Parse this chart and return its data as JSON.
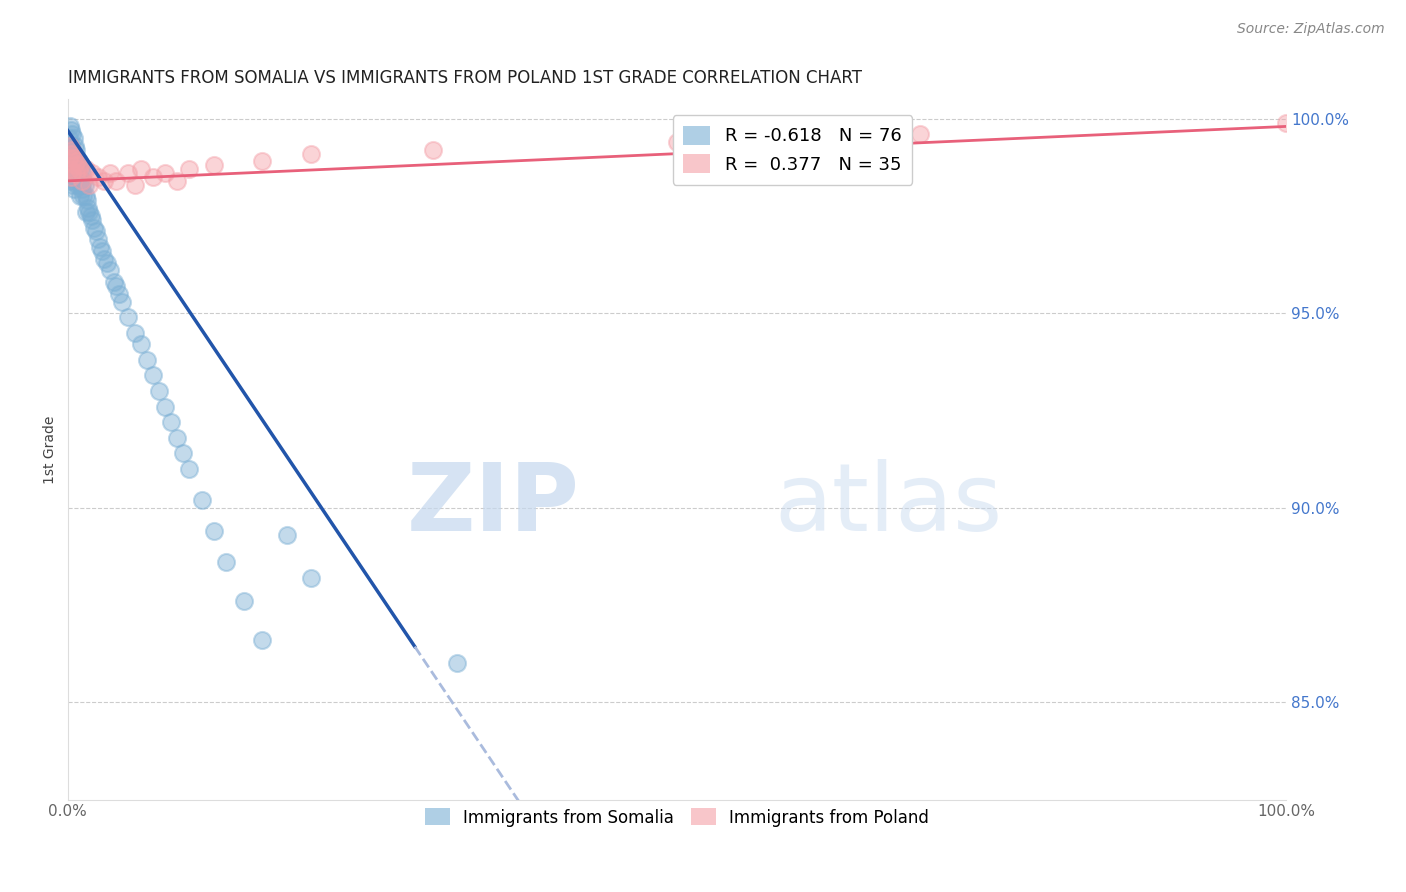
{
  "title": "IMMIGRANTS FROM SOMALIA VS IMMIGRANTS FROM POLAND 1ST GRADE CORRELATION CHART",
  "source": "Source: ZipAtlas.com",
  "ylabel": "1st Grade",
  "legend_somalia": "Immigrants from Somalia",
  "legend_poland": "Immigrants from Poland",
  "somalia_R": -0.618,
  "somalia_N": 76,
  "poland_R": 0.377,
  "poland_N": 35,
  "somalia_color": "#7BAFD4",
  "poland_color": "#F4A0A8",
  "trend_somalia_color": "#2255AA",
  "trend_poland_color": "#E8607A",
  "xlim": [
    0.0,
    1.0
  ],
  "ylim": [
    0.825,
    1.005
  ],
  "watermark_zip": "ZIP",
  "watermark_atlas": "atlas",
  "somalia_x": [
    0.001,
    0.001,
    0.002,
    0.002,
    0.002,
    0.003,
    0.003,
    0.003,
    0.003,
    0.004,
    0.004,
    0.004,
    0.004,
    0.005,
    0.005,
    0.005,
    0.005,
    0.006,
    0.006,
    0.006,
    0.007,
    0.007,
    0.007,
    0.008,
    0.008,
    0.008,
    0.009,
    0.009,
    0.01,
    0.01,
    0.01,
    0.011,
    0.011,
    0.012,
    0.012,
    0.013,
    0.013,
    0.014,
    0.015,
    0.015,
    0.016,
    0.017,
    0.018,
    0.019,
    0.02,
    0.022,
    0.023,
    0.025,
    0.027,
    0.028,
    0.03,
    0.032,
    0.035,
    0.038,
    0.04,
    0.042,
    0.045,
    0.05,
    0.055,
    0.06,
    0.065,
    0.07,
    0.075,
    0.08,
    0.085,
    0.09,
    0.095,
    0.1,
    0.11,
    0.12,
    0.13,
    0.145,
    0.16,
    0.18,
    0.2,
    0.32
  ],
  "somalia_y": [
    0.995,
    0.992,
    0.998,
    0.993,
    0.988,
    0.997,
    0.993,
    0.989,
    0.984,
    0.996,
    0.992,
    0.988,
    0.983,
    0.995,
    0.991,
    0.987,
    0.982,
    0.993,
    0.989,
    0.985,
    0.992,
    0.988,
    0.984,
    0.99,
    0.987,
    0.983,
    0.989,
    0.985,
    0.988,
    0.984,
    0.98,
    0.987,
    0.983,
    0.986,
    0.982,
    0.984,
    0.98,
    0.983,
    0.98,
    0.976,
    0.979,
    0.977,
    0.976,
    0.975,
    0.974,
    0.972,
    0.971,
    0.969,
    0.967,
    0.966,
    0.964,
    0.963,
    0.961,
    0.958,
    0.957,
    0.955,
    0.953,
    0.949,
    0.945,
    0.942,
    0.938,
    0.934,
    0.93,
    0.926,
    0.922,
    0.918,
    0.914,
    0.91,
    0.902,
    0.894,
    0.886,
    0.876,
    0.866,
    0.893,
    0.882,
    0.86
  ],
  "poland_x": [
    0.001,
    0.002,
    0.002,
    0.003,
    0.003,
    0.004,
    0.004,
    0.005,
    0.006,
    0.007,
    0.008,
    0.009,
    0.01,
    0.012,
    0.015,
    0.018,
    0.02,
    0.025,
    0.03,
    0.035,
    0.04,
    0.05,
    0.055,
    0.06,
    0.07,
    0.08,
    0.09,
    0.1,
    0.12,
    0.16,
    0.2,
    0.3,
    0.5,
    0.7,
    1.0
  ],
  "poland_y": [
    0.99,
    0.993,
    0.987,
    0.991,
    0.985,
    0.992,
    0.986,
    0.99,
    0.988,
    0.986,
    0.989,
    0.987,
    0.988,
    0.984,
    0.987,
    0.983,
    0.986,
    0.985,
    0.984,
    0.986,
    0.984,
    0.986,
    0.983,
    0.987,
    0.985,
    0.986,
    0.984,
    0.987,
    0.988,
    0.989,
    0.991,
    0.992,
    0.994,
    0.996,
    0.999
  ],
  "trend_somalia_x0": 0.0,
  "trend_somalia_y0": 0.997,
  "trend_somalia_x1": 0.32,
  "trend_somalia_y1": 0.848,
  "trend_somalia_solid_end": 0.285,
  "trend_somalia_dashed_end": 0.42,
  "trend_poland_x0": 0.0,
  "trend_poland_y0": 0.984,
  "trend_poland_x1": 1.0,
  "trend_poland_y1": 0.998
}
